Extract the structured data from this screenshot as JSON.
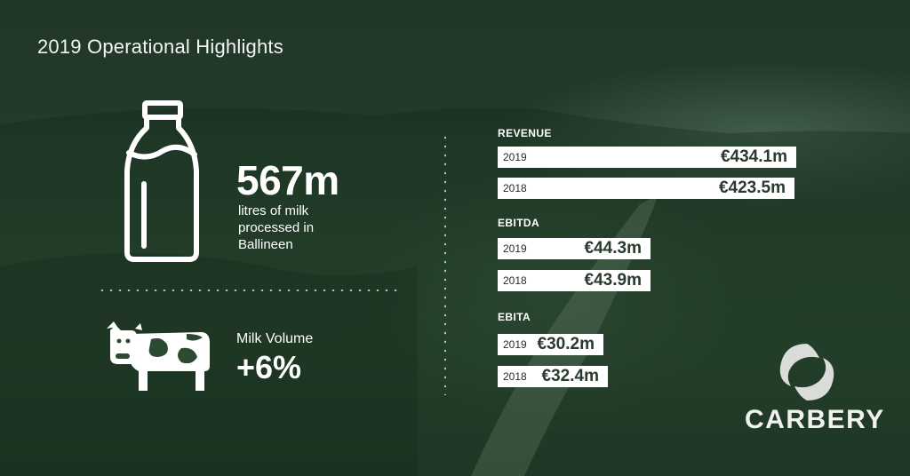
{
  "title": "2019 Operational Highlights",
  "milk": {
    "value": "567m",
    "caption": "litres of milk processed in Ballineen"
  },
  "milk_volume": {
    "label": "Milk Volume",
    "value": "+6%"
  },
  "brand": {
    "name": "CARBERY"
  },
  "colors": {
    "background": "#2a4830",
    "bar": "#ffffff",
    "bar_text": "#2a3a2e"
  },
  "icons": [
    "milk-bottle-icon",
    "cow-icon",
    "carbery-logo-mark"
  ],
  "chart_data": [
    {
      "type": "bar",
      "title": "REVENUE",
      "categories": [
        "2019",
        "2018"
      ],
      "values": [
        434.1,
        423.5
      ],
      "labels": [
        "€434.1m",
        "€423.5m"
      ]
    },
    {
      "type": "bar",
      "title": "EBITDA",
      "categories": [
        "2019",
        "2018"
      ],
      "values": [
        44.3,
        43.9
      ],
      "labels": [
        "€44.3m",
        "€43.9m"
      ]
    },
    {
      "type": "bar",
      "title": "EBITA",
      "categories": [
        "2019",
        "2018"
      ],
      "values": [
        30.2,
        32.4
      ],
      "labels": [
        "€30.2m",
        "€32.4m"
      ]
    }
  ]
}
